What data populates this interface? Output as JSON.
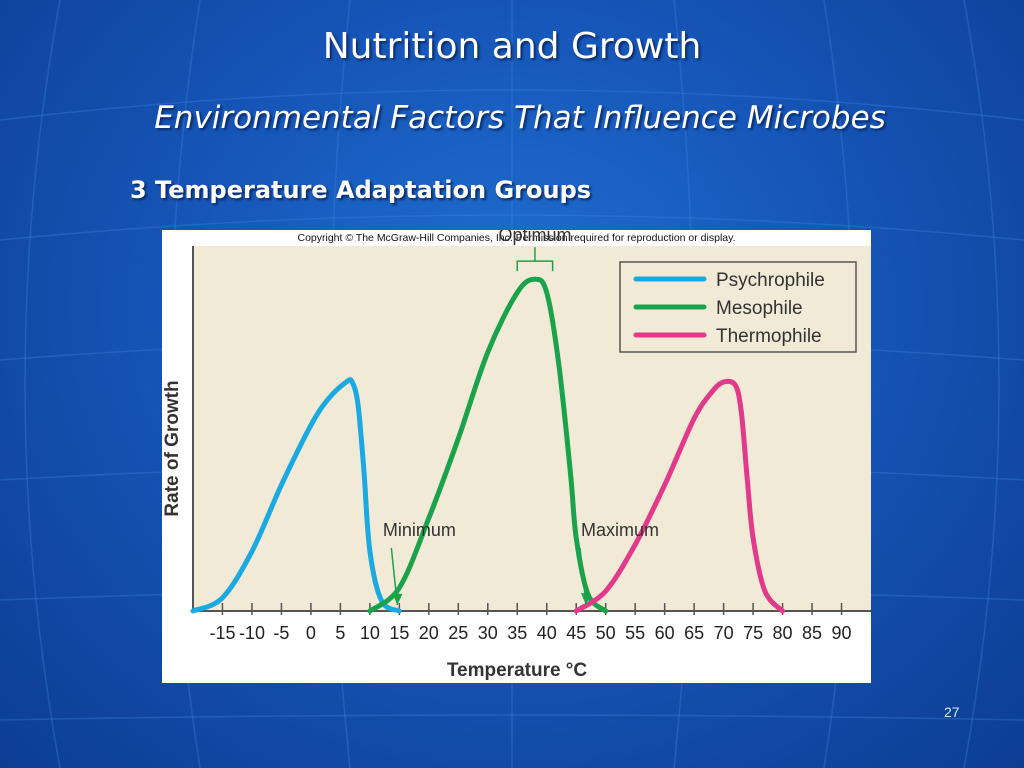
{
  "slide": {
    "title": "Nutrition and Growth",
    "subtitle": "Environmental Factors That Influence Microbes",
    "heading": "3 Temperature Adaptation Groups",
    "copyright": "Copyright © The McGraw-Hill Companies, Inc. Permission required for reproduction or display.",
    "slide_number": "27"
  },
  "colors": {
    "plot_background": "#f1ead6",
    "psychrophile": "#1aa9e0",
    "mesophile": "#1aa34a",
    "thermophile": "#e23a8a",
    "axis": "#555555"
  },
  "chart_data": {
    "type": "line",
    "xlabel": "Temperature °C",
    "ylabel": "Rate of Growth",
    "xlim": [
      -20,
      95
    ],
    "ylim": [
      0,
      1.1
    ],
    "x_ticks": [
      -15,
      -10,
      -5,
      0,
      5,
      10,
      15,
      20,
      25,
      30,
      35,
      40,
      45,
      50,
      55,
      60,
      65,
      70,
      75,
      80,
      85,
      90
    ],
    "legend_position": "top-right",
    "series": [
      {
        "name": "Psychrophile",
        "color_key": "psychrophile",
        "x": [
          -20,
          -15,
          -10,
          -5,
          0,
          3,
          6,
          7,
          8,
          9,
          10,
          12,
          15
        ],
        "y": [
          0.0,
          0.04,
          0.18,
          0.38,
          0.56,
          0.64,
          0.69,
          0.69,
          0.62,
          0.42,
          0.18,
          0.03,
          0.0
        ]
      },
      {
        "name": "Mesophile",
        "color_key": "mesophile",
        "x": [
          10,
          15,
          20,
          25,
          30,
          35,
          38,
          40,
          42,
          44,
          45,
          47,
          50
        ],
        "y": [
          0.0,
          0.07,
          0.28,
          0.52,
          0.78,
          0.96,
          1.0,
          0.96,
          0.75,
          0.42,
          0.22,
          0.05,
          0.0
        ]
      },
      {
        "name": "Thermophile",
        "color_key": "thermophile",
        "x": [
          45,
          50,
          55,
          60,
          65,
          68,
          70,
          72,
          73,
          74,
          75,
          77,
          80
        ],
        "y": [
          0.0,
          0.06,
          0.2,
          0.38,
          0.58,
          0.66,
          0.69,
          0.68,
          0.6,
          0.4,
          0.22,
          0.06,
          0.0
        ]
      }
    ],
    "annotations": [
      {
        "text": "Optimum",
        "x_range": [
          35,
          41
        ],
        "y": 1.0
      },
      {
        "text": "Minimum",
        "x": 15,
        "y": 0.0
      },
      {
        "text": "Maximum",
        "x": 47,
        "y": 0.0
      }
    ]
  }
}
